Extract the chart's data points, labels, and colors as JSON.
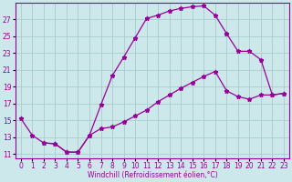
{
  "bg_color": "#cce8ea",
  "grid_color": "#aacccc",
  "line_color": "#990099",
  "marker": "*",
  "xlim": [
    -0.5,
    23.5
  ],
  "ylim": [
    10.5,
    29.0
  ],
  "yticks": [
    11,
    13,
    15,
    17,
    19,
    21,
    23,
    25,
    27
  ],
  "xticks": [
    0,
    1,
    2,
    3,
    4,
    5,
    6,
    7,
    8,
    9,
    10,
    11,
    12,
    13,
    14,
    15,
    16,
    17,
    18,
    19,
    20,
    21,
    22,
    23
  ],
  "xlabel": "Windchill (Refroidissement éolien,°C)",
  "line1_x": [
    0,
    1,
    2,
    3,
    4,
    5,
    6,
    7,
    8,
    9,
    10,
    11,
    12,
    13,
    14,
    15,
    16,
    17,
    18
  ],
  "line1_y": [
    15.2,
    13.2,
    12.3,
    12.2,
    11.2,
    11.2,
    13.2,
    16.8,
    20.3,
    22.5,
    24.8,
    27.1,
    27.5,
    28.0,
    28.3,
    28.5,
    28.6,
    27.5,
    25.3
  ],
  "line2_x": [
    18,
    19,
    20,
    21,
    22,
    23
  ],
  "line2_y": [
    25.3,
    23.2,
    23.2,
    22.2,
    18.0,
    18.2
  ],
  "line3_x": [
    2,
    3,
    4,
    5,
    6,
    7,
    8,
    9,
    10,
    11,
    12,
    13,
    14,
    15,
    16,
    17,
    18,
    19,
    20,
    21,
    22,
    23
  ],
  "line3_y": [
    12.3,
    12.2,
    11.2,
    11.2,
    13.2,
    14.0,
    14.2,
    14.8,
    15.5,
    16.2,
    17.2,
    18.0,
    18.8,
    19.5,
    20.2,
    20.8,
    18.5,
    17.8,
    17.5,
    18.0,
    18.0,
    18.2
  ],
  "tick_fontsize": 5.5,
  "label_fontsize": 5.5,
  "linewidth": 0.9,
  "markersize": 3.5
}
